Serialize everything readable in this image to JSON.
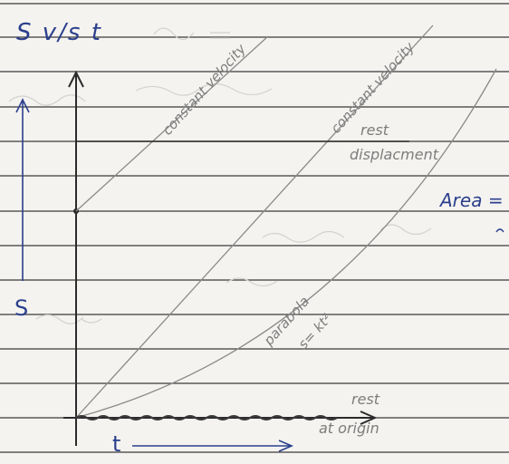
{
  "diagram": {
    "title": "S v/s t",
    "axes": {
      "y_label": "S",
      "x_label": "t"
    },
    "curves": {
      "line_upper": "constant velocity",
      "line_through_origin": "constant velocity",
      "parabola_name": "parabola",
      "parabola_equation": "s= kt²",
      "rest_horizontal": "rest",
      "rest_horizontal_2": "displacment",
      "rest_origin": "rest",
      "rest_origin_2": "at origin"
    },
    "side_note": "Area ="
  },
  "colors": {
    "paper": "#f4f3f0",
    "rule_line": "#3a3a3a",
    "margin_line": "#3a3a3a",
    "pencil": "#8a8a8a",
    "pen_ink": "#2b3f8c",
    "bleed_through": "#c9c7c2"
  }
}
